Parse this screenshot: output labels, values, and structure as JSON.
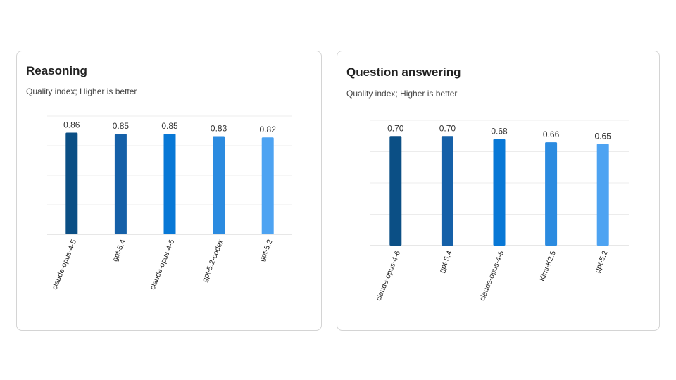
{
  "chart_data": [
    {
      "type": "bar",
      "title": "Reasoning",
      "subtitle": "Quality index; Higher is better",
      "categories": [
        "claude-opus-4-5",
        "gpt-5.4",
        "claude-opus-4-6",
        "gpt-5.2-codex",
        "gpt-5.2"
      ],
      "values": [
        0.86,
        0.85,
        0.85,
        0.83,
        0.82
      ],
      "value_labels": [
        "0.86",
        "0.85",
        "0.85",
        "0.83",
        "0.82"
      ],
      "colors": [
        "#0b4f85",
        "#1560a8",
        "#0878d6",
        "#2b8be0",
        "#4da3f2"
      ],
      "ylim": [
        0,
        1
      ],
      "grid": true,
      "legend": "none"
    },
    {
      "type": "bar",
      "title": "Question answering",
      "subtitle": "Quality index; Higher is better",
      "categories": [
        "claude-opus-4-6",
        "gpt-5.4",
        "claude-opus-4-5",
        "Kimi-K2.5",
        "gpt-5.2"
      ],
      "values": [
        0.7,
        0.7,
        0.68,
        0.66,
        0.65
      ],
      "value_labels": [
        "0.70",
        "0.70",
        "0.68",
        "0.66",
        "0.65"
      ],
      "colors": [
        "#0b4f85",
        "#1560a8",
        "#0878d6",
        "#2b8be0",
        "#4da3f2"
      ],
      "ylim": [
        0,
        0.8
      ],
      "grid": true,
      "legend": "none"
    }
  ]
}
